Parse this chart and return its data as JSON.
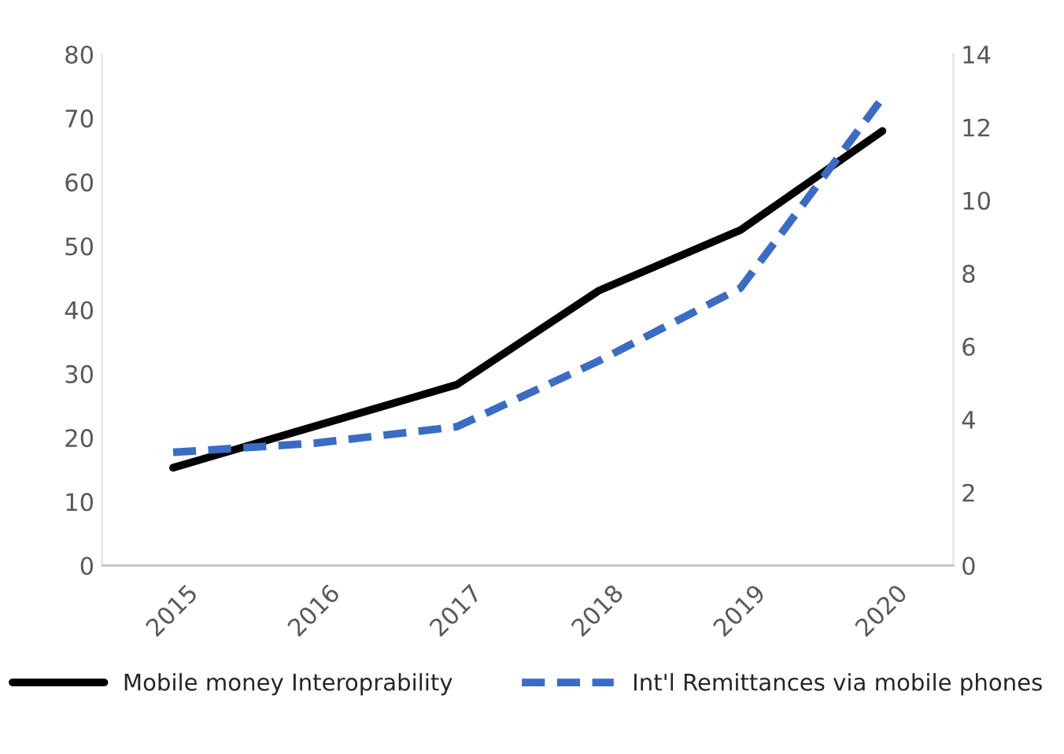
{
  "chart_data": {
    "type": "line",
    "categories": [
      "2015",
      "2016",
      "2017",
      "2018",
      "2019",
      "2020"
    ],
    "series": [
      {
        "name": "Mobile money Interoprability",
        "color": "#000000",
        "line_style": "solid",
        "values": [
          15.3,
          21.8,
          28.3,
          43,
          52.5,
          68
        ]
      },
      {
        "name": "Int'l Remittances via mobile phones",
        "color": "#3a6cc6",
        "line_style": "dashed",
        "axis": "y2",
        "values": [
          3.1,
          3.35,
          3.8,
          5.6,
          7.6,
          12.8
        ]
      }
    ],
    "ylim": [
      0,
      80
    ],
    "yticks": [
      0,
      10,
      20,
      30,
      40,
      50,
      60,
      70,
      80
    ],
    "y2lim": [
      0,
      14
    ],
    "y2ticks": [
      0,
      2,
      4,
      6,
      8,
      10,
      12,
      14
    ],
    "grid": false,
    "legend": "bottom"
  }
}
